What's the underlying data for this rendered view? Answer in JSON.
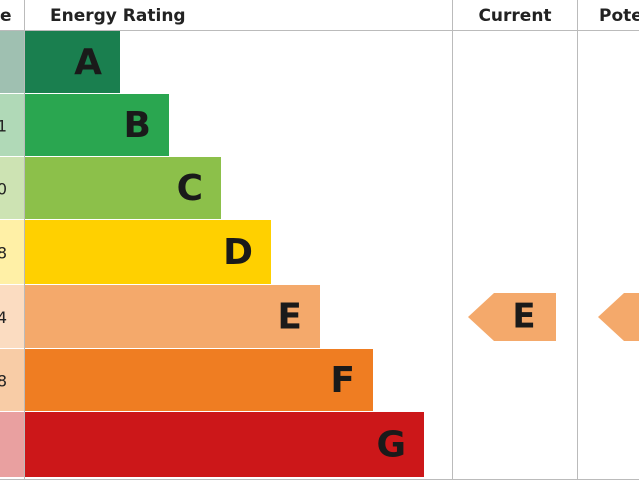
{
  "header": {
    "score": "e",
    "rating": "Energy Rating",
    "current": "Current",
    "potential": "Pote"
  },
  "bands": [
    {
      "letter": "A"
    },
    {
      "letter": "B",
      "score": "1"
    },
    {
      "letter": "C",
      "score": "0"
    },
    {
      "letter": "D",
      "score": "8"
    },
    {
      "letter": "E",
      "score": "4"
    },
    {
      "letter": "F",
      "score": "8"
    },
    {
      "letter": "G"
    }
  ],
  "current": "E",
  "potential": "E"
}
